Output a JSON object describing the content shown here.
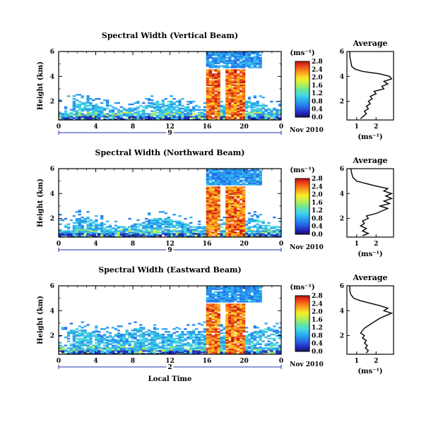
{
  "chart_data": [
    {
      "type": "heatmap",
      "title": "Spectral Width (Vertical Beam)",
      "ylabel": "Height (km)",
      "xlabel": "",
      "date_label": "9",
      "month_label": "Nov 2010",
      "x_ticks": [
        "0",
        "4",
        "8",
        "12",
        "16",
        "20",
        "0"
      ],
      "y_ticks": [
        "2",
        "4",
        "6"
      ],
      "xlim": [
        0,
        24
      ],
      "ylim": [
        0.5,
        6.0
      ],
      "colorbar": {
        "unit": "(ms⁻¹)",
        "ticks": [
          "0.0",
          "0.4",
          "0.8",
          "1.2",
          "1.6",
          "2.0",
          "2.4",
          "2.8"
        ],
        "range": [
          0.0,
          2.8
        ]
      },
      "profile": {
        "title": "Average",
        "xlabel": "(ms⁻¹)",
        "x_ticks": [
          "1",
          "2"
        ],
        "y_ticks": [
          "2",
          "4",
          "6"
        ],
        "xlim": [
          0.5,
          2.9
        ],
        "ylim": [
          0.5,
          6.0
        ],
        "points": [
          [
            1.2,
            0.6
          ],
          [
            1.35,
            0.8
          ],
          [
            1.5,
            1.0
          ],
          [
            1.4,
            1.2
          ],
          [
            1.6,
            1.4
          ],
          [
            1.5,
            1.6
          ],
          [
            1.7,
            1.8
          ],
          [
            1.6,
            2.0
          ],
          [
            1.8,
            2.2
          ],
          [
            1.7,
            2.4
          ],
          [
            2.0,
            2.6
          ],
          [
            1.9,
            2.8
          ],
          [
            2.4,
            3.0
          ],
          [
            2.3,
            3.2
          ],
          [
            2.6,
            3.4
          ],
          [
            2.4,
            3.6
          ],
          [
            2.8,
            3.8
          ],
          [
            2.7,
            4.0
          ],
          [
            2.2,
            4.2
          ],
          [
            1.3,
            4.4
          ],
          [
            0.9,
            4.6
          ],
          [
            0.75,
            4.8
          ],
          [
            0.7,
            5.2
          ],
          [
            0.65,
            5.6
          ],
          [
            0.65,
            6.0
          ]
        ]
      }
    },
    {
      "type": "heatmap",
      "title": "Spectral Width (Northward Beam)",
      "ylabel": "Height (km)",
      "xlabel": "",
      "date_label": "9",
      "month_label": "Nov 2010",
      "x_ticks": [
        "0",
        "4",
        "8",
        "12",
        "16",
        "20",
        "0"
      ],
      "y_ticks": [
        "2",
        "4",
        "6"
      ],
      "xlim": [
        0,
        24
      ],
      "ylim": [
        0.5,
        6.0
      ],
      "colorbar": {
        "unit": "(ms⁻¹)",
        "ticks": [
          "0.0",
          "0.4",
          "0.8",
          "1.2",
          "1.6",
          "2.0",
          "2.4",
          "2.8"
        ],
        "range": [
          0.0,
          2.8
        ]
      },
      "profile": {
        "title": "Average",
        "xlabel": "(ms⁻¹)",
        "x_ticks": [
          "1",
          "2"
        ],
        "y_ticks": [
          "2",
          "4",
          "6"
        ],
        "xlim": [
          0.5,
          2.9
        ],
        "ylim": [
          0.5,
          6.0
        ],
        "points": [
          [
            1.3,
            0.6
          ],
          [
            1.6,
            0.8
          ],
          [
            1.3,
            1.0
          ],
          [
            1.5,
            1.2
          ],
          [
            1.2,
            1.4
          ],
          [
            1.4,
            1.6
          ],
          [
            1.3,
            1.8
          ],
          [
            1.6,
            2.0
          ],
          [
            1.5,
            2.2
          ],
          [
            2.0,
            2.4
          ],
          [
            2.3,
            2.6
          ],
          [
            2.6,
            2.8
          ],
          [
            2.2,
            3.0
          ],
          [
            2.7,
            3.2
          ],
          [
            2.4,
            3.4
          ],
          [
            2.8,
            3.6
          ],
          [
            2.5,
            3.8
          ],
          [
            2.8,
            4.0
          ],
          [
            2.4,
            4.2
          ],
          [
            2.6,
            4.4
          ],
          [
            2.0,
            4.6
          ],
          [
            1.5,
            4.8
          ],
          [
            1.0,
            5.0
          ],
          [
            0.8,
            5.3
          ],
          [
            0.75,
            5.6
          ],
          [
            0.7,
            6.0
          ]
        ]
      }
    },
    {
      "type": "heatmap",
      "title": "Spectral Width (Eastward Beam)",
      "ylabel": "Height (km)",
      "xlabel": "Local Time",
      "date_label": "2",
      "month_label": "Nov 2010",
      "x_ticks": [
        "0",
        "4",
        "8",
        "12",
        "16",
        "20",
        "0"
      ],
      "y_ticks": [
        "2",
        "4",
        "6"
      ],
      "xlim": [
        0,
        24
      ],
      "ylim": [
        0.5,
        6.0
      ],
      "colorbar": {
        "unit": "(ms⁻¹)",
        "ticks": [
          "0.0",
          "0.4",
          "0.8",
          "1.2",
          "1.6",
          "2.0",
          "2.4",
          "2.8"
        ],
        "range": [
          0.0,
          2.8
        ]
      },
      "profile": {
        "title": "Average",
        "xlabel": "(ms⁻¹)",
        "x_ticks": [
          "1",
          "2"
        ],
        "y_ticks": [
          "2",
          "4",
          "6"
        ],
        "xlim": [
          0.5,
          2.9
        ],
        "ylim": [
          0.5,
          6.0
        ],
        "points": [
          [
            1.5,
            0.6
          ],
          [
            1.6,
            0.8
          ],
          [
            1.45,
            1.0
          ],
          [
            1.55,
            1.2
          ],
          [
            1.4,
            1.4
          ],
          [
            1.5,
            1.6
          ],
          [
            1.3,
            1.8
          ],
          [
            1.4,
            2.0
          ],
          [
            1.2,
            2.2
          ],
          [
            1.3,
            2.4
          ],
          [
            1.4,
            2.6
          ],
          [
            1.6,
            2.8
          ],
          [
            1.8,
            3.0
          ],
          [
            2.0,
            3.2
          ],
          [
            2.2,
            3.4
          ],
          [
            2.5,
            3.6
          ],
          [
            2.8,
            3.8
          ],
          [
            2.4,
            4.0
          ],
          [
            2.6,
            4.2
          ],
          [
            2.2,
            4.4
          ],
          [
            1.7,
            4.6
          ],
          [
            1.2,
            4.8
          ],
          [
            0.85,
            5.0
          ],
          [
            0.7,
            5.3
          ],
          [
            0.65,
            5.6
          ],
          [
            0.65,
            6.0
          ]
        ]
      }
    }
  ]
}
